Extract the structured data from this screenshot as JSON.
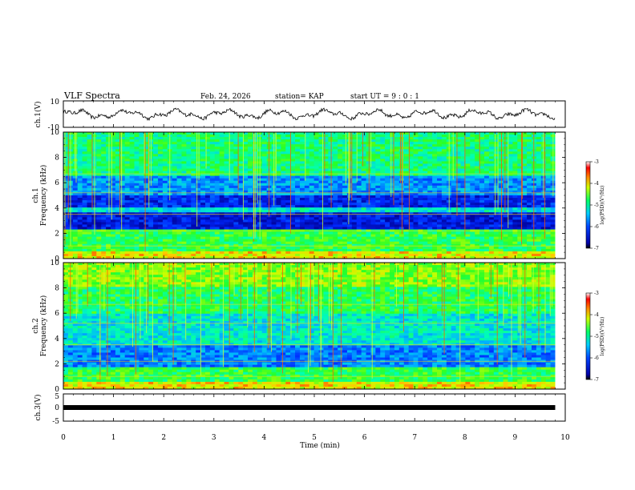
{
  "header": {
    "title": "VLF Spectra",
    "date": "Feb. 24, 2026",
    "station": "station= KAP",
    "start_ut": "start  UT =   9 : 0  : 1"
  },
  "chart_data": [
    {
      "type": "line",
      "panel": "ch1-waveform",
      "ylabel": "ch.1(V)",
      "yticks": [
        "10",
        "-10"
      ],
      "ylim": [
        -10,
        10
      ],
      "description_values": "amplitude fluctuates roughly between -3 and 3 V over 0–9.8 min"
    },
    {
      "type": "heatmap",
      "panel": "ch1-spectrogram",
      "ylabel_channel": "ch.1",
      "ylabel": "Frequency  (kHz)",
      "ylim": [
        0,
        10
      ],
      "yticks": [
        "0",
        "2",
        "4",
        "6",
        "8",
        "10"
      ],
      "colorbar": {
        "label": "log(PSD)(V²/Hz)",
        "ticks": [
          "-3",
          "-4",
          "-5",
          "-6",
          "-7"
        ],
        "range": [
          -7,
          -3
        ]
      }
    },
    {
      "type": "heatmap",
      "panel": "ch2-spectrogram",
      "ylabel_channel": "ch.2",
      "ylabel": "Frequency  (kHz)",
      "ylim": [
        0,
        10
      ],
      "yticks": [
        "0",
        "2",
        "4",
        "6",
        "8",
        "10"
      ],
      "colorbar": {
        "label": "log(PSD)(V²/Hz)",
        "ticks": [
          "-3",
          "-4",
          "-5",
          "-6",
          "-7"
        ],
        "range": [
          -7,
          -3
        ]
      }
    },
    {
      "type": "line",
      "panel": "ch3-waveform",
      "ylabel": "ch.3(V)",
      "yticks": [
        "5",
        "0",
        "-5"
      ],
      "ylim": [
        -5,
        5
      ],
      "values_note": "constant at approximately 0 V"
    }
  ],
  "xaxis": {
    "label": "Time  (min)",
    "ticks": [
      "0",
      "1",
      "2",
      "3",
      "4",
      "5",
      "6",
      "7",
      "8",
      "9",
      "10"
    ],
    "range": [
      0,
      10
    ],
    "data_end": 9.8
  }
}
